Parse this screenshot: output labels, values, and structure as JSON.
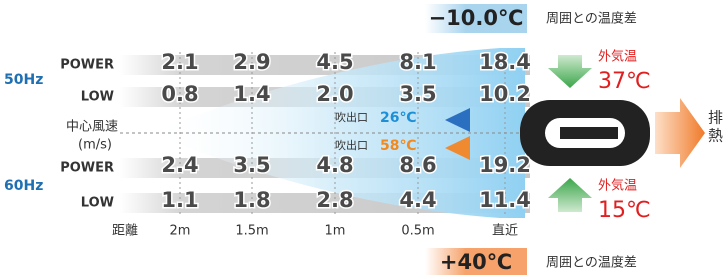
{
  "top_badge": {
    "value": "−10.0℃",
    "label": "周囲との温度差"
  },
  "bottom_badge": {
    "value": "+40℃",
    "label": "周囲との温度差"
  },
  "groups": [
    {
      "name": "50Hz",
      "rows": [
        {
          "label": "POWER",
          "values": [
            "2.1",
            "2.9",
            "4.5",
            "8.1",
            "18.4"
          ]
        },
        {
          "label": "LOW",
          "values": [
            "0.8",
            "1.4",
            "2.0",
            "3.5",
            "10.2"
          ]
        }
      ]
    },
    {
      "name": "60Hz",
      "rows": [
        {
          "label": "POWER",
          "values": [
            "2.4",
            "3.5",
            "4.8",
            "8.6",
            "19.2"
          ]
        },
        {
          "label": "LOW",
          "values": [
            "1.1",
            "1.8",
            "2.8",
            "4.4",
            "11.4"
          ]
        }
      ]
    }
  ],
  "axis_title": "中心風速",
  "axis_unit": "(m/s)",
  "outlets": [
    {
      "label": "吹出口",
      "temp": "26℃"
    },
    {
      "label": "吹出口",
      "temp": "58℃"
    }
  ],
  "distance": {
    "label": "距離",
    "columns": [
      "2m",
      "1.5m",
      "1m",
      "0.5m",
      "直近"
    ]
  },
  "ambient": [
    {
      "label": "外気温",
      "temp": "37℃"
    },
    {
      "label": "外気温",
      "temp": "15℃"
    }
  ],
  "exhaust": [
    "排",
    "熱"
  ]
}
